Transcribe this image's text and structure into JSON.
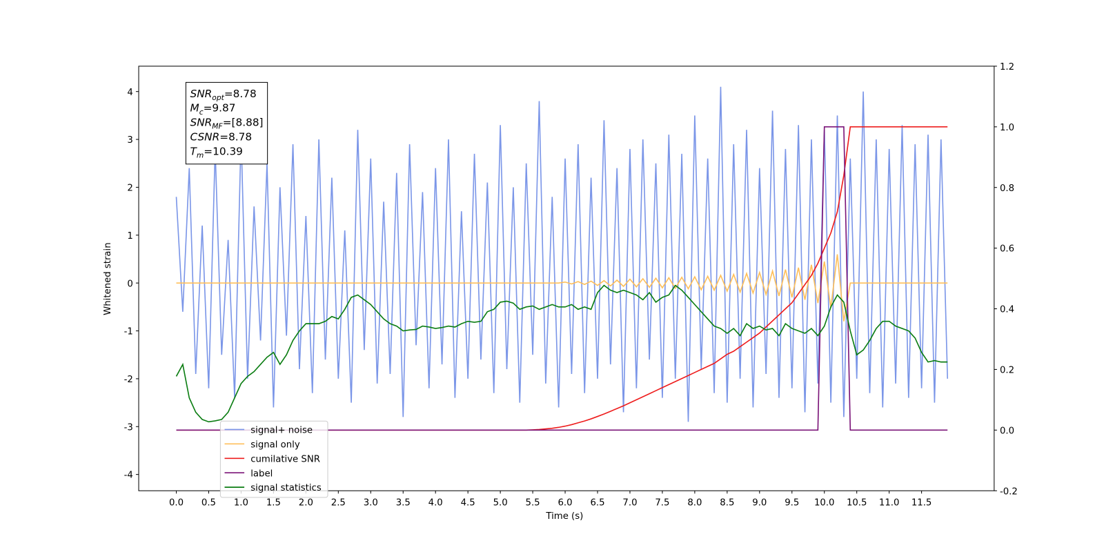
{
  "chart_data": {
    "type": "line",
    "xlabel": "Time (s)",
    "ylabel": "Whitened strain",
    "xlim": [
      -0.58,
      12.62
    ],
    "ylim": [
      -4.34,
      4.53
    ],
    "y2lim": [
      -0.2,
      1.2
    ],
    "xticks": [
      {
        "value": 0,
        "label": "0.0"
      },
      0.5,
      {
        "value": 1,
        "label": "1.0"
      },
      1.5,
      {
        "value": 2,
        "label": "2.0"
      },
      2.5,
      {
        "value": 3,
        "label": "3.0"
      },
      3.5,
      {
        "value": 4,
        "label": "4.0"
      },
      4.5,
      {
        "value": 5,
        "label": "5.0"
      },
      5.5,
      {
        "value": 6,
        "label": "6.0"
      },
      6.5,
      {
        "value": 7,
        "label": "7.0"
      },
      7.5,
      {
        "value": 8,
        "label": "8.0"
      },
      8.5,
      {
        "value": 9,
        "label": "9.0"
      },
      9.5,
      {
        "value": 10,
        "label": "10.0"
      },
      10.5,
      {
        "value": 11,
        "label": "11.0"
      },
      11.5
    ],
    "yticks": [
      -4,
      -3,
      -2,
      -1,
      0,
      1,
      2,
      3,
      4
    ],
    "y2ticks": [
      -0.2,
      {
        "value": 0,
        "label": "0.0"
      },
      0.2,
      0.4,
      0.6,
      0.8,
      {
        "value": 1,
        "label": "1.0"
      },
      1.2
    ],
    "grid": false,
    "legend": "lower left",
    "annotations": [
      {
        "base": "SNR",
        "sub": "opt",
        "text": "=8.78"
      },
      {
        "base": "M",
        "sub": "c",
        "text": "=9.87"
      },
      {
        "base": "SNR",
        "sub": "MF",
        "text": "=[8.88]"
      },
      {
        "base": "CSNR",
        "text": "=8.78"
      },
      {
        "base": "T",
        "sub": "m",
        "text": "=10.39"
      }
    ],
    "x": [
      0,
      0.1,
      0.2,
      0.3,
      0.4,
      0.5,
      0.6,
      0.7,
      0.8,
      0.9,
      1,
      1.1,
      1.2,
      1.3,
      1.4,
      1.5,
      1.6,
      1.7,
      1.8,
      1.9,
      2,
      2.1,
      2.2,
      2.3,
      2.4,
      2.5,
      2.6,
      2.7,
      2.8,
      2.9,
      3,
      3.1,
      3.2,
      3.3,
      3.4,
      3.5,
      3.6,
      3.7,
      3.8,
      3.9,
      4,
      4.1,
      4.2,
      4.3,
      4.4,
      4.5,
      4.6,
      4.7,
      4.8,
      4.9,
      5,
      5.1,
      5.2,
      5.3,
      5.4,
      5.5,
      5.6,
      5.7,
      5.8,
      5.9,
      6,
      6.1,
      6.2,
      6.3,
      6.4,
      6.5,
      6.6,
      6.7,
      6.8,
      6.9,
      7,
      7.1,
      7.2,
      7.3,
      7.4,
      7.5,
      7.6,
      7.7,
      7.8,
      7.9,
      8,
      8.1,
      8.2,
      8.3,
      8.4,
      8.5,
      8.6,
      8.7,
      8.8,
      8.9,
      9,
      9.1,
      9.2,
      9.3,
      9.4,
      9.5,
      9.6,
      9.7,
      9.8,
      9.9,
      10,
      10.1,
      10.2,
      10.3,
      10.4,
      10.5,
      10.6,
      10.7,
      10.8,
      10.9,
      11,
      11.1,
      11.2,
      11.3,
      11.4,
      11.5,
      11.6,
      11.7,
      11.8,
      11.9
    ],
    "series": [
      {
        "name": "signal+ noise",
        "color": "#7b96e8",
        "axis": "y",
        "values": [
          1.8,
          -0.6,
          2.4,
          -1.9,
          1.2,
          -2.2,
          2.8,
          -1.5,
          0.9,
          -2.4,
          3.1,
          -2.0,
          1.6,
          -1.2,
          2.5,
          -2.6,
          2.0,
          -1.1,
          2.9,
          -1.8,
          1.4,
          -2.3,
          3.0,
          -1.6,
          2.2,
          -2.0,
          1.1,
          -2.5,
          3.2,
          -1.4,
          2.6,
          -2.1,
          1.7,
          -1.9,
          2.3,
          -2.8,
          2.9,
          -1.3,
          1.9,
          -2.2,
          2.4,
          -1.7,
          3.0,
          -2.4,
          1.5,
          -2.0,
          2.7,
          -1.6,
          2.1,
          -2.3,
          3.3,
          -1.8,
          2.0,
          -2.5,
          2.5,
          -1.5,
          3.8,
          -2.1,
          1.8,
          -2.6,
          2.6,
          -1.9,
          2.9,
          -2.3,
          2.2,
          -2.0,
          3.4,
          -1.7,
          2.4,
          -2.7,
          2.8,
          -2.2,
          3.0,
          -1.6,
          2.5,
          -2.4,
          3.1,
          -2.0,
          2.7,
          -2.9,
          3.5,
          -1.8,
          2.6,
          -2.3,
          4.1,
          -2.5,
          2.9,
          -2.0,
          3.2,
          -2.6,
          2.4,
          -1.9,
          3.6,
          -2.4,
          2.8,
          -2.2,
          3.3,
          -2.7,
          3.0,
          -2.1,
          3.2,
          -2.5,
          3.5,
          -2.8,
          2.6,
          -2.0,
          4.0,
          -2.3,
          3.0,
          -2.6,
          2.8,
          -2.1,
          3.3,
          -2.4,
          2.9,
          -2.2,
          3.1,
          -2.5,
          3.0,
          -2.0
        ]
      },
      {
        "name": "signal only",
        "color": "#ffbf5a",
        "axis": "y",
        "values": [
          0,
          0,
          0,
          0,
          0,
          0,
          0,
          0,
          0,
          0,
          0,
          0,
          0,
          0,
          0,
          0,
          0,
          0,
          0,
          0,
          0,
          0,
          0,
          0,
          0,
          0,
          0,
          0,
          0,
          0,
          0,
          0,
          0,
          0,
          0,
          0,
          0,
          0,
          0,
          0,
          0,
          0,
          0,
          0,
          0,
          0,
          0,
          0,
          0,
          0,
          0,
          0,
          0,
          0,
          0,
          0,
          0,
          0,
          0,
          0,
          0.02,
          -0.02,
          0.03,
          -0.03,
          0.04,
          -0.05,
          0.05,
          -0.06,
          0.06,
          -0.07,
          0.08,
          -0.08,
          0.09,
          -0.09,
          0.1,
          -0.1,
          0.11,
          -0.11,
          0.12,
          -0.12,
          0.13,
          -0.14,
          0.14,
          -0.15,
          0.16,
          -0.17,
          0.18,
          -0.19,
          0.2,
          -0.21,
          0.22,
          -0.24,
          0.25,
          -0.27,
          0.28,
          -0.3,
          0.32,
          -0.35,
          0.38,
          -0.42,
          0.45,
          -0.52,
          0.6,
          -0.8,
          0,
          0,
          0,
          0,
          0,
          0,
          0,
          0,
          0,
          0,
          0,
          0,
          0,
          0,
          0,
          0
        ]
      },
      {
        "name": "cumilative SNR",
        "color": "#ee1c1c",
        "axis": "y2",
        "values": [
          0,
          0,
          0,
          0,
          0,
          0,
          0,
          0,
          0,
          0,
          0,
          0,
          0,
          0,
          0,
          0,
          0,
          0,
          0,
          0,
          0,
          0,
          0,
          0,
          0,
          0,
          0,
          0,
          0,
          0,
          0,
          0,
          0,
          0,
          0,
          0,
          0,
          0,
          0,
          0,
          0,
          0,
          0,
          0,
          0,
          0,
          0,
          0,
          0,
          0,
          0,
          0,
          0,
          0,
          0,
          0.001,
          0.002,
          0.004,
          0.006,
          0.009,
          0.013,
          0.018,
          0.024,
          0.03,
          0.037,
          0.045,
          0.053,
          0.062,
          0.071,
          0.08,
          0.09,
          0.1,
          0.11,
          0.12,
          0.13,
          0.14,
          0.15,
          0.16,
          0.17,
          0.18,
          0.19,
          0.2,
          0.21,
          0.22,
          0.235,
          0.25,
          0.26,
          0.275,
          0.29,
          0.305,
          0.32,
          0.34,
          0.36,
          0.38,
          0.4,
          0.42,
          0.45,
          0.48,
          0.51,
          0.55,
          0.6,
          0.65,
          0.72,
          0.84,
          1,
          1,
          1,
          1,
          1,
          1,
          1,
          1,
          1,
          1,
          1,
          1,
          1,
          1,
          1,
          1
        ]
      },
      {
        "name": "label",
        "color": "#7b1478",
        "axis": "y2",
        "values": [
          0,
          0,
          0,
          0,
          0,
          0,
          0,
          0,
          0,
          0,
          0,
          0,
          0,
          0,
          0,
          0,
          0,
          0,
          0,
          0,
          0,
          0,
          0,
          0,
          0,
          0,
          0,
          0,
          0,
          0,
          0,
          0,
          0,
          0,
          0,
          0,
          0,
          0,
          0,
          0,
          0,
          0,
          0,
          0,
          0,
          0,
          0,
          0,
          0,
          0,
          0,
          0,
          0,
          0,
          0,
          0,
          0,
          0,
          0,
          0,
          0,
          0,
          0,
          0,
          0,
          0,
          0,
          0,
          0,
          0,
          0,
          0,
          0,
          0,
          0,
          0,
          0,
          0,
          0,
          0,
          0,
          0,
          0,
          0,
          0,
          0,
          0,
          0,
          0,
          0,
          0,
          0,
          0,
          0,
          0,
          0,
          0,
          0,
          0,
          0,
          1,
          1,
          1,
          1,
          0,
          0,
          0,
          0,
          0,
          0,
          0,
          0,
          0,
          0,
          0,
          0,
          0,
          0,
          0,
          0
        ]
      },
      {
        "name": "signal statistics",
        "color": "#0b7d12",
        "axis": "y",
        "values": [
          -1.95,
          -1.7,
          -2.4,
          -2.7,
          -2.85,
          -2.9,
          -2.88,
          -2.85,
          -2.7,
          -2.4,
          -2.1,
          -1.95,
          -1.85,
          -1.7,
          -1.55,
          -1.45,
          -1.7,
          -1.5,
          -1.2,
          -1.0,
          -0.85,
          -0.85,
          -0.85,
          -0.8,
          -0.7,
          -0.75,
          -0.55,
          -0.3,
          -0.25,
          -0.35,
          -0.45,
          -0.6,
          -0.75,
          -0.85,
          -0.9,
          -1.0,
          -0.98,
          -0.97,
          -0.9,
          -0.92,
          -0.95,
          -0.93,
          -0.9,
          -0.92,
          -0.85,
          -0.8,
          -0.82,
          -0.8,
          -0.6,
          -0.55,
          -0.4,
          -0.38,
          -0.42,
          -0.55,
          -0.5,
          -0.48,
          -0.55,
          -0.5,
          -0.45,
          -0.5,
          -0.5,
          -0.45,
          -0.55,
          -0.5,
          -0.55,
          -0.2,
          -0.05,
          -0.15,
          -0.2,
          -0.15,
          -0.2,
          -0.25,
          -0.35,
          -0.2,
          -0.4,
          -0.3,
          -0.25,
          -0.05,
          -0.15,
          -0.3,
          -0.45,
          -0.6,
          -0.75,
          -0.9,
          -0.95,
          -1.05,
          -0.95,
          -1.1,
          -0.85,
          -0.95,
          -0.9,
          -0.98,
          -0.95,
          -1.1,
          -0.85,
          -0.95,
          -1.0,
          -1.05,
          -0.95,
          -1.1,
          -0.9,
          -0.5,
          -0.25,
          -0.4,
          -1.0,
          -1.5,
          -1.4,
          -1.2,
          -0.95,
          -0.8,
          -0.8,
          -0.9,
          -0.95,
          -1.0,
          -1.15,
          -1.45,
          -1.65,
          -1.62,
          -1.65,
          -1.65
        ]
      }
    ]
  }
}
